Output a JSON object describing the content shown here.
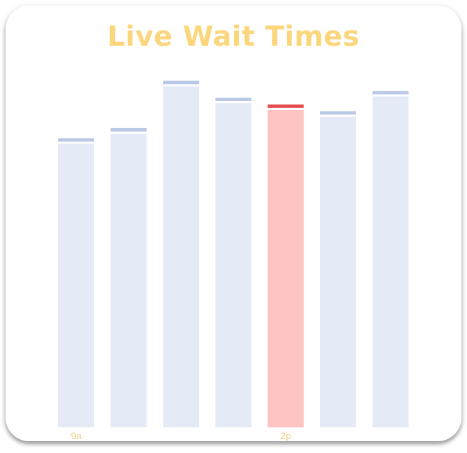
{
  "chart_data": {
    "type": "bar",
    "title": "Live Wait Times",
    "categories": [
      "9a",
      "",
      "",
      "",
      "2p",
      "",
      ""
    ],
    "values": [
      84,
      87,
      101,
      96,
      94,
      92,
      98
    ],
    "highlight_index": 4,
    "ylim": [
      0,
      104
    ],
    "grid": false,
    "colors": {
      "bar": "#e5eaf7",
      "bar_cap": "#b9c8e5",
      "highlight": "#fec3c3",
      "highlight_cap": "#e54b4e",
      "title": "#fcd67c",
      "tick": "#f4cf86"
    }
  }
}
